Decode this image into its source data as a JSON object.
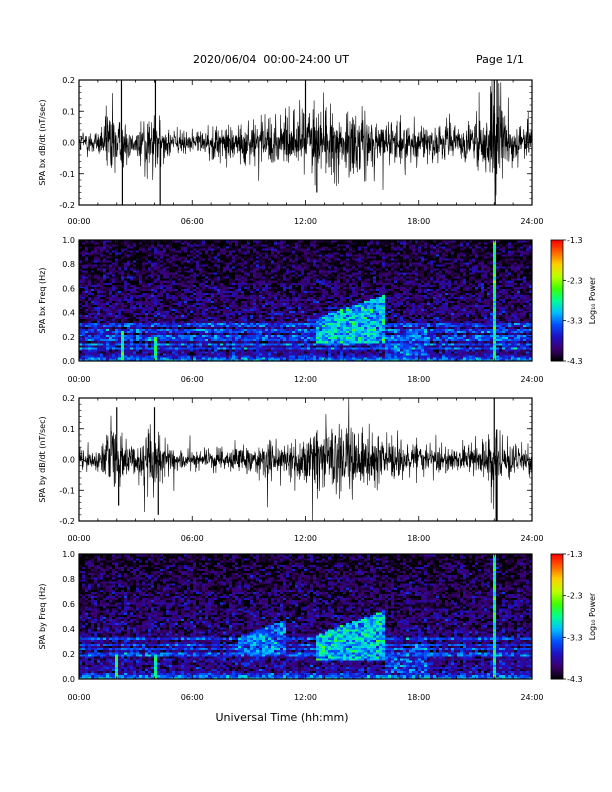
{
  "header": {
    "date_range": "2020/06/04  00:00-24:00 UT",
    "page": "Page 1/1"
  },
  "footer": {
    "xlabel": "Universal Time (hh:mm)"
  },
  "colorbar": {
    "label": "Log₁₀ Power"
  },
  "colormap": [
    "#000000",
    "#3c0070",
    "#2010c0",
    "#0050ff",
    "#00c0ff",
    "#00ff90",
    "#40ff00",
    "#c0ff00",
    "#ffd000",
    "#ff6000",
    "#ff0000"
  ],
  "chart_data": [
    {
      "type": "line",
      "ylabel": "SPA bx dB/dt (nT/sec)",
      "xlim": [
        0,
        24
      ],
      "xticks": [
        "00:00",
        "06:00",
        "12:00",
        "18:00",
        "24:00"
      ],
      "ylim": [
        -0.2,
        0.2
      ],
      "yticks": [
        "-0.2",
        "-0.1",
        "0.0",
        "0.1",
        "0.2"
      ],
      "activity": [
        [
          0,
          0.028
        ],
        [
          1,
          0.03
        ],
        [
          1.8,
          0.09
        ],
        [
          2.2,
          0.05
        ],
        [
          3,
          0.03
        ],
        [
          3.7,
          0.07
        ],
        [
          4.2,
          0.05
        ],
        [
          5,
          0.025
        ],
        [
          6,
          0.028
        ],
        [
          8,
          0.04
        ],
        [
          9,
          0.05
        ],
        [
          11,
          0.055
        ],
        [
          12,
          0.08
        ],
        [
          12.8,
          0.09
        ],
        [
          14,
          0.07
        ],
        [
          15,
          0.065
        ],
        [
          16,
          0.05
        ],
        [
          17,
          0.045
        ],
        [
          18,
          0.04
        ],
        [
          20,
          0.035
        ],
        [
          21.5,
          0.06
        ],
        [
          22.0,
          0.14
        ],
        [
          22.6,
          0.06
        ],
        [
          24,
          0.04
        ]
      ],
      "spikes": [
        [
          2.25,
          0.2
        ],
        [
          2.3,
          -0.2
        ],
        [
          4.05,
          0.2
        ],
        [
          4.3,
          -0.2
        ],
        [
          12.0,
          0.2
        ],
        [
          12.6,
          -0.16
        ],
        [
          22.0,
          0.2
        ],
        [
          22.05,
          -0.2
        ],
        [
          22.15,
          0.2
        ]
      ]
    },
    {
      "type": "heatmap",
      "ylabel": "SPA bx Freq (Hz)",
      "xlim": [
        0,
        24
      ],
      "xticks": [
        "00:00",
        "06:00",
        "12:00",
        "18:00",
        "24:00"
      ],
      "ylim": [
        0,
        1
      ],
      "yticks": [
        "0.0",
        "0.2",
        "0.4",
        "0.6",
        "0.8",
        "1.0"
      ],
      "colorbar": {
        "min": -4.3,
        "max": -1.3,
        "ticks": [
          "-1.3",
          "-2.3",
          "-3.3",
          "-4.3"
        ]
      },
      "lines_hz": [
        0.11,
        0.14,
        0.17,
        0.2,
        0.25,
        0.3
      ],
      "events": [
        {
          "t0": 12.5,
          "t1": 16.2,
          "fmin": 0.15,
          "fmax": 0.55,
          "level": -3.1
        },
        {
          "t0": 16.2,
          "t1": 18.5,
          "fmin": 0.05,
          "fmax": 0.3,
          "level": -3.5
        }
      ],
      "vertical_lines": [
        {
          "t": 22.0,
          "fmax": 1.0
        },
        {
          "t": 2.25,
          "fmax": 0.25
        },
        {
          "t": 4.1,
          "fmax": 0.2
        }
      ]
    },
    {
      "type": "line",
      "ylabel": "SPA by dB/dt (nT/sec)",
      "xlim": [
        0,
        24
      ],
      "xticks": [
        "00:00",
        "06:00",
        "12:00",
        "18:00",
        "24:00"
      ],
      "ylim": [
        -0.2,
        0.2
      ],
      "yticks": [
        "-0.2",
        "-0.1",
        "0.0",
        "0.1",
        "0.2"
      ],
      "activity": [
        [
          0,
          0.02
        ],
        [
          1,
          0.025
        ],
        [
          1.8,
          0.08
        ],
        [
          2.2,
          0.05
        ],
        [
          3,
          0.03
        ],
        [
          3.7,
          0.09
        ],
        [
          4.2,
          0.05
        ],
        [
          5,
          0.025
        ],
        [
          6,
          0.02
        ],
        [
          8,
          0.03
        ],
        [
          9,
          0.035
        ],
        [
          11,
          0.04
        ],
        [
          12,
          0.06
        ],
        [
          12.8,
          0.07
        ],
        [
          14,
          0.075
        ],
        [
          15,
          0.07
        ],
        [
          16,
          0.05
        ],
        [
          17,
          0.04
        ],
        [
          18,
          0.035
        ],
        [
          20,
          0.03
        ],
        [
          21.5,
          0.04
        ],
        [
          22.0,
          0.09
        ],
        [
          22.6,
          0.04
        ],
        [
          24,
          0.03
        ]
      ],
      "spikes": [
        [
          2.0,
          0.17
        ],
        [
          2.1,
          -0.15
        ],
        [
          4.0,
          0.17
        ],
        [
          4.2,
          -0.18
        ],
        [
          22.0,
          0.2
        ],
        [
          22.1,
          -0.2
        ],
        [
          22.15,
          -0.2
        ]
      ]
    },
    {
      "type": "heatmap",
      "ylabel": "SPA by Freq (Hz)",
      "xlim": [
        0,
        24
      ],
      "xticks": [
        "00:00",
        "06:00",
        "12:00",
        "18:00",
        "24:00"
      ],
      "ylim": [
        0,
        1
      ],
      "yticks": [
        "0.0",
        "0.2",
        "0.4",
        "0.6",
        "0.8",
        "1.0"
      ],
      "colorbar": {
        "min": -4.3,
        "max": -1.3,
        "ticks": [
          "-1.3",
          "-2.3",
          "-3.3",
          "-4.3"
        ]
      },
      "lines_hz": [
        0.2,
        0.24,
        0.28,
        0.32
      ],
      "events": [
        {
          "t0": 8.5,
          "t1": 11.0,
          "fmin": 0.2,
          "fmax": 0.48,
          "level": -3.3
        },
        {
          "t0": 12.5,
          "t1": 16.2,
          "fmin": 0.15,
          "fmax": 0.55,
          "level": -3.1
        },
        {
          "t0": 16.2,
          "t1": 18.5,
          "fmin": 0.05,
          "fmax": 0.3,
          "level": -3.5
        }
      ],
      "vertical_lines": [
        {
          "t": 22.0,
          "fmax": 1.0
        },
        {
          "t": 2.0,
          "fmax": 0.2
        },
        {
          "t": 4.1,
          "fmax": 0.2
        }
      ]
    }
  ]
}
